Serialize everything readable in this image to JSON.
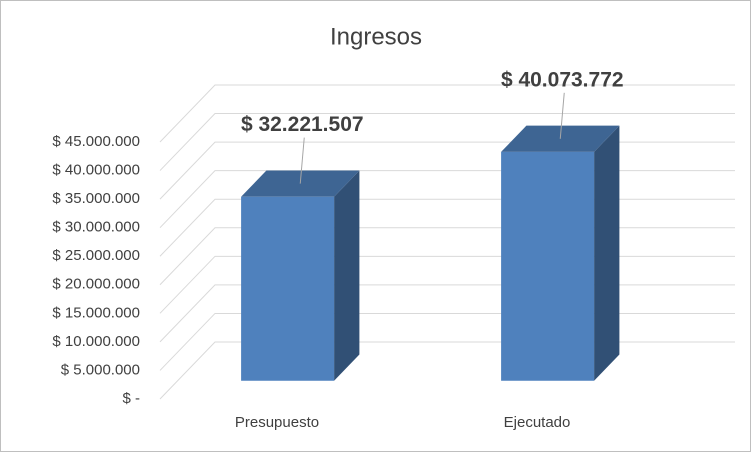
{
  "chart_data": {
    "type": "bar3d",
    "title": "Ingresos",
    "categories": [
      "Presupuesto",
      "Ejecutado"
    ],
    "values": [
      32221507,
      40073772
    ],
    "value_labels": [
      "$ 32.221.507",
      "$ 40.073.772"
    ],
    "color": "#4f81bd",
    "ylim": [
      0,
      45000000
    ],
    "yticks": [
      {
        "value": 0,
        "label": "$ -"
      },
      {
        "value": 5000000,
        "label": "$ 5.000.000"
      },
      {
        "value": 10000000,
        "label": "$ 10.000.000"
      },
      {
        "value": 15000000,
        "label": "$ 15.000.000"
      },
      {
        "value": 20000000,
        "label": "$ 20.000.000"
      },
      {
        "value": 25000000,
        "label": "$ 25.000.000"
      },
      {
        "value": 30000000,
        "label": "$ 30.000.000"
      },
      {
        "value": 35000000,
        "label": "$ 35.000.000"
      },
      {
        "value": 40000000,
        "label": "$ 40.000.000"
      },
      {
        "value": 45000000,
        "label": "$ 45.000.000"
      }
    ],
    "grid": true
  }
}
